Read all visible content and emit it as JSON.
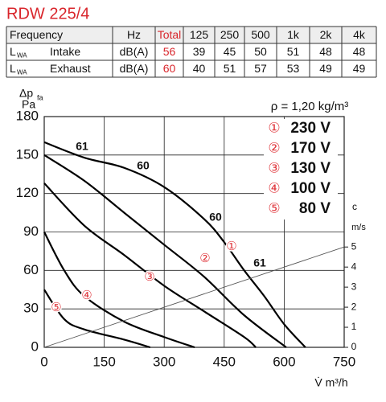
{
  "title": "RDW 225/4",
  "table": {
    "header": [
      "Frequency",
      "Hz",
      "Total",
      "125",
      "250",
      "500",
      "1k",
      "2k",
      "4k"
    ],
    "rows": [
      {
        "symbol": "L",
        "subscript": "WA",
        "label": "Intake",
        "unit": "dB(A)",
        "values": [
          56,
          39,
          45,
          50,
          51,
          48,
          48
        ]
      },
      {
        "symbol": "L",
        "subscript": "WA",
        "label": "Exhaust",
        "unit": "dB(A)",
        "values": [
          60,
          40,
          51,
          57,
          53,
          49,
          49
        ]
      }
    ]
  },
  "chart_data": {
    "type": "line",
    "density_label": "ρ = 1,20 kg/m³",
    "y_label": "Δp",
    "y_label_sub": "fa",
    "y_unit": "Pa",
    "x_label": "V̇ m³/h",
    "y2_label": "c",
    "y2_unit": "m/s",
    "xlim": [
      0,
      750
    ],
    "xticks": [
      0,
      150,
      300,
      450,
      600,
      750
    ],
    "ylim": [
      0,
      180
    ],
    "yticks": [
      0,
      30,
      60,
      90,
      120,
      150,
      180
    ],
    "y2lim": [
      0,
      11.5
    ],
    "y2ticks": [
      0,
      1,
      2,
      3,
      4,
      5
    ],
    "grid": true,
    "series": [
      {
        "name": "230 V",
        "marker": "①",
        "color": "#000000",
        "x": [
          0,
          100,
          200,
          300,
          400,
          450,
          500,
          550,
          600,
          653
        ],
        "values": [
          160,
          148,
          140,
          125,
          100,
          82,
          60,
          40,
          18,
          0
        ]
      },
      {
        "name": "170 V",
        "marker": "②",
        "color": "#000000",
        "x": [
          0,
          100,
          200,
          300,
          400,
          500,
          605
        ],
        "values": [
          150,
          130,
          105,
          80,
          55,
          25,
          0
        ]
      },
      {
        "name": "130 V",
        "marker": "③",
        "color": "#000000",
        "x": [
          0,
          100,
          200,
          300,
          400,
          500,
          529
        ],
        "values": [
          128,
          95,
          72,
          48,
          28,
          8,
          0
        ]
      },
      {
        "name": "100 V",
        "marker": "④",
        "color": "#000000",
        "x": [
          0,
          50,
          100,
          200,
          300,
          376
        ],
        "values": [
          90,
          60,
          40,
          20,
          8,
          0
        ]
      },
      {
        "name": "80 V",
        "marker": "⑤",
        "color": "#000000",
        "x": [
          0,
          50,
          100,
          200,
          265
        ],
        "values": [
          45,
          22,
          14,
          6,
          0
        ]
      },
      {
        "color": "#555555",
        "axis": "y2",
        "x": [
          0,
          750
        ],
        "values": [
          0,
          5
        ]
      }
    ],
    "annotations": [
      "61",
      "60",
      "60",
      "61"
    ],
    "marker_color": "#e0383e"
  }
}
